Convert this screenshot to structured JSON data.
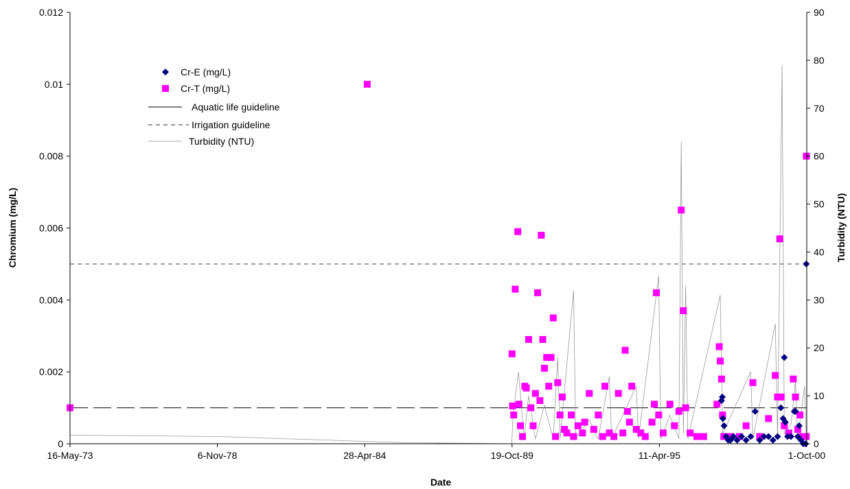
{
  "chart_data": {
    "type": "scatter",
    "title": "",
    "xlabel": "Date",
    "ylabel_left": "Chromium (mg/L)",
    "ylabel_right": "Turbidity (NTU)",
    "x_range": [
      "1973-05-16",
      "2000-10-01"
    ],
    "x_ticks": [
      "16-May-73",
      "6-Nov-78",
      "28-Apr-84",
      "19-Oct-89",
      "11-Apr-95",
      "1-Oct-00"
    ],
    "x_tick_dates": [
      "1973-05-16",
      "1978-11-06",
      "1984-04-28",
      "1989-10-19",
      "1995-04-11",
      "2000-10-01"
    ],
    "y_left_range": [
      0,
      0.012
    ],
    "y_left_ticks": [
      "0",
      "0.002",
      "0.004",
      "0.006",
      "0.008",
      "0.01",
      "0.012"
    ],
    "y_right_range": [
      0,
      90
    ],
    "y_right_ticks": [
      "0",
      "10",
      "20",
      "30",
      "40",
      "50",
      "60",
      "70",
      "80",
      "90"
    ],
    "grid": false,
    "legend_position": "top-left",
    "legend": [
      "Cr-E (mg/L)",
      "Cr-T (mg/L)",
      "Aquatic life guideline",
      "Irrigation guideline",
      "Turbidity (NTU)"
    ],
    "guidelines": [
      {
        "name": "Aquatic life guideline",
        "value": 0.001,
        "style": "long-dash"
      },
      {
        "name": "Irrigation guideline",
        "value": 0.005,
        "style": "short-dash"
      }
    ],
    "series": [
      {
        "name": "Cr-E (mg/L)",
        "marker": "diamond",
        "color": "#000080",
        "points": [
          [
            "1997-08-01",
            0.0012
          ],
          [
            "1997-08-12",
            0.0013
          ],
          [
            "1997-08-20",
            0.0007
          ],
          [
            "1997-09-05",
            0.0005
          ],
          [
            "1997-10-01",
            0.0002
          ],
          [
            "1997-11-01",
            0.0001
          ],
          [
            "1997-12-01",
            0.0001
          ],
          [
            "1998-01-10",
            0.0002
          ],
          [
            "1998-03-01",
            0.0001
          ],
          [
            "1998-05-01",
            0.0002
          ],
          [
            "1998-07-01",
            0.0001
          ],
          [
            "1998-09-01",
            0.0002
          ],
          [
            "1998-11-01",
            0.0009
          ],
          [
            "1999-01-01",
            0.0001
          ],
          [
            "1999-03-01",
            0.0002
          ],
          [
            "1999-05-01",
            0.0002
          ],
          [
            "1999-07-01",
            0.0001
          ],
          [
            "1999-09-01",
            0.0002
          ],
          [
            "1999-10-15",
            0.001
          ],
          [
            "1999-11-15",
            0.0007
          ],
          [
            "1999-12-01",
            0.0024
          ],
          [
            "1999-12-15",
            0.0006
          ],
          [
            "2000-01-15",
            0.0002
          ],
          [
            "2000-03-01",
            0.0002
          ],
          [
            "2000-04-15",
            0.0009
          ],
          [
            "2000-05-01",
            0.0009
          ],
          [
            "2000-06-01",
            0.0002
          ],
          [
            "2000-06-20",
            0.0005
          ],
          [
            "2000-07-15",
            0.0001
          ],
          [
            "2000-08-15",
            0.0
          ],
          [
            "2000-09-15",
            0.0
          ],
          [
            "2000-09-25",
            0.005
          ]
        ]
      },
      {
        "name": "Cr-T (mg/L)",
        "marker": "square",
        "color": "#ff00ff",
        "points": [
          [
            "1973-05-16",
            0.001
          ],
          [
            "1984-06-01",
            0.01
          ],
          [
            "1989-10-19",
            0.0025
          ],
          [
            "1989-10-25",
            0.00105
          ],
          [
            "1989-11-10",
            0.0008
          ],
          [
            "1989-12-01",
            0.0043
          ],
          [
            "1990-01-05",
            0.0059
          ],
          [
            "1990-01-20",
            0.0011
          ],
          [
            "1990-02-10",
            0.0005
          ],
          [
            "1990-03-10",
            0.0002
          ],
          [
            "1990-04-10",
            0.0016
          ],
          [
            "1990-05-01",
            0.00155
          ],
          [
            "1990-06-01",
            0.0029
          ],
          [
            "1990-07-01",
            0.001
          ],
          [
            "1990-08-01",
            0.0005
          ],
          [
            "1990-09-01",
            0.0014
          ],
          [
            "1990-10-01",
            0.0042
          ],
          [
            "1990-11-01",
            0.0012
          ],
          [
            "1990-11-20",
            0.0058
          ],
          [
            "1990-12-10",
            0.0029
          ],
          [
            "1991-01-01",
            0.0021
          ],
          [
            "1991-02-01",
            0.0024
          ],
          [
            "1991-03-01",
            0.0016
          ],
          [
            "1991-04-01",
            0.0024
          ],
          [
            "1991-05-01",
            0.0035
          ],
          [
            "1991-06-01",
            0.0002
          ],
          [
            "1991-07-01",
            0.0017
          ],
          [
            "1991-08-01",
            0.0008
          ],
          [
            "1991-09-01",
            0.0013
          ],
          [
            "1991-10-01",
            0.0004
          ],
          [
            "1991-11-01",
            0.0003
          ],
          [
            "1992-01-01",
            0.0008
          ],
          [
            "1992-02-01",
            0.0002
          ],
          [
            "1992-04-01",
            0.0005
          ],
          [
            "1992-06-01",
            0.0003
          ],
          [
            "1992-07-01",
            0.0006
          ],
          [
            "1992-09-01",
            0.0014
          ],
          [
            "1992-11-01",
            0.0004
          ],
          [
            "1993-01-01",
            0.0008
          ],
          [
            "1993-03-01",
            0.0002
          ],
          [
            "1993-04-01",
            0.0016
          ],
          [
            "1993-06-01",
            0.0003
          ],
          [
            "1993-08-01",
            0.0002
          ],
          [
            "1993-10-01",
            0.0014
          ],
          [
            "1993-12-01",
            0.0003
          ],
          [
            "1994-01-01",
            0.0026
          ],
          [
            "1994-02-01",
            0.0009
          ],
          [
            "1994-03-01",
            0.0006
          ],
          [
            "1994-04-01",
            0.0016
          ],
          [
            "1994-06-01",
            0.0004
          ],
          [
            "1994-08-01",
            0.0003
          ],
          [
            "1994-10-01",
            0.0002
          ],
          [
            "1995-01-01",
            0.0006
          ],
          [
            "1995-02-01",
            0.0011
          ],
          [
            "1995-03-01",
            0.0042
          ],
          [
            "1995-04-01",
            0.0008
          ],
          [
            "1995-06-01",
            0.0003
          ],
          [
            "1995-09-01",
            0.0011
          ],
          [
            "1995-11-01",
            0.0005
          ],
          [
            "1996-01-01",
            0.0009
          ],
          [
            "1996-02-01",
            0.0065
          ],
          [
            "1996-03-01",
            0.0037
          ],
          [
            "1996-04-01",
            0.001
          ],
          [
            "1996-06-01",
            0.0003
          ],
          [
            "1996-09-01",
            0.0002
          ],
          [
            "1996-12-01",
            0.0002
          ],
          [
            "1997-06-01",
            0.0011
          ],
          [
            "1997-07-01",
            0.0027
          ],
          [
            "1997-07-15",
            0.0023
          ],
          [
            "1997-08-01",
            0.0018
          ],
          [
            "1997-08-15",
            0.0008
          ],
          [
            "1997-09-01",
            0.0002
          ],
          [
            "1997-12-01",
            0.0002
          ],
          [
            "1998-04-01",
            0.0002
          ],
          [
            "1998-07-01",
            0.0005
          ],
          [
            "1998-10-01",
            0.0017
          ],
          [
            "1999-01-01",
            0.0002
          ],
          [
            "1999-05-01",
            0.0007
          ],
          [
            "1999-08-01",
            0.0019
          ],
          [
            "1999-09-01",
            0.0013
          ],
          [
            "1999-10-01",
            0.0057
          ],
          [
            "1999-10-20",
            0.0013
          ],
          [
            "1999-12-01",
            0.0005
          ],
          [
            "2000-02-01",
            0.0003
          ],
          [
            "2000-04-01",
            0.0018
          ],
          [
            "2000-05-01",
            0.0013
          ],
          [
            "2000-06-01",
            0.0004
          ],
          [
            "2000-07-01",
            0.0008
          ],
          [
            "2000-08-01",
            0.0002
          ],
          [
            "2000-09-01",
            0.0002
          ],
          [
            "2000-09-25",
            0.0002
          ],
          [
            "2000-09-26",
            0.008
          ]
        ]
      },
      {
        "name": "Turbidity (NTU)",
        "axis": "right",
        "line": "thin",
        "color": "#999999",
        "points": [
          [
            "1973-05-16",
            1.8
          ],
          [
            "1978-11-06",
            1.5
          ],
          [
            "1984-04-28",
            0.5
          ],
          [
            "1986-01-01",
            0.2
          ],
          [
            "1989-10-15",
            0.0
          ],
          [
            "1989-11-01",
            6.0
          ],
          [
            "1990-01-15",
            15.0
          ],
          [
            "1990-04-01",
            1.0
          ],
          [
            "1990-06-01",
            10.0
          ],
          [
            "1990-09-01",
            1.0
          ],
          [
            "1991-01-01",
            8.0
          ],
          [
            "1991-05-01",
            1.0
          ],
          [
            "1991-07-01",
            18.0
          ],
          [
            "1991-08-01",
            1.0
          ],
          [
            "1992-02-01",
            32.0
          ],
          [
            "1992-03-01",
            1.0
          ],
          [
            "1992-09-01",
            5.0
          ],
          [
            "1993-01-01",
            1.0
          ],
          [
            "1993-06-01",
            14.0
          ],
          [
            "1993-07-01",
            1.0
          ],
          [
            "1994-06-01",
            12.0
          ],
          [
            "1994-07-01",
            1.0
          ],
          [
            "1995-04-01",
            35.0
          ],
          [
            "1995-05-01",
            1.0
          ],
          [
            "1995-09-01",
            6.0
          ],
          [
            "1996-01-01",
            1.0
          ],
          [
            "1996-02-01",
            63.0
          ],
          [
            "1996-03-01",
            2.0
          ],
          [
            "1996-04-01",
            33.0
          ],
          [
            "1996-05-01",
            1.0
          ],
          [
            "1997-07-15",
            31.0
          ],
          [
            "1997-08-15",
            2.0
          ],
          [
            "1998-09-01",
            15.0
          ],
          [
            "1998-10-01",
            1.0
          ],
          [
            "1999-08-01",
            25.0
          ],
          [
            "1999-09-01",
            1.0
          ],
          [
            "1999-11-01",
            79.0
          ],
          [
            "1999-12-01",
            2.0
          ],
          [
            "2000-03-01",
            4.0
          ],
          [
            "2000-05-01",
            13.0
          ],
          [
            "2000-06-01",
            1.0
          ],
          [
            "2000-09-01",
            12.0
          ],
          [
            "2000-09-25",
            1.0
          ]
        ]
      }
    ]
  }
}
